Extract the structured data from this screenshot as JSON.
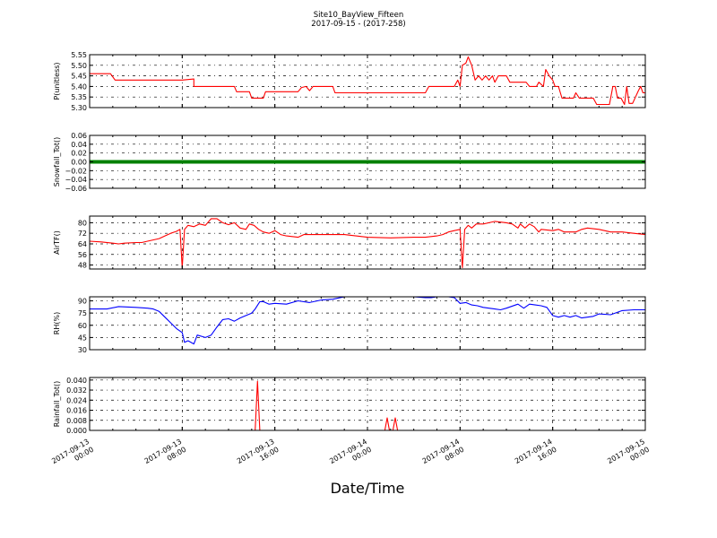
{
  "header": {
    "title": "Site10_BayView_Fifteen",
    "subtitle": "2017-09-15 - (2017-258)"
  },
  "xlabel": "Date/Time",
  "x_ticks": [
    {
      "line1": "2017-09-13",
      "line2": "00:00"
    },
    {
      "line1": "2017-09-13",
      "line2": "08:00"
    },
    {
      "line1": "2017-09-13",
      "line2": "16:00"
    },
    {
      "line1": "2017-09-14",
      "line2": "00:00"
    },
    {
      "line1": "2017-09-14",
      "line2": "08:00"
    },
    {
      "line1": "2017-09-14",
      "line2": "16:00"
    },
    {
      "line1": "2017-09-15",
      "line2": "00:00"
    }
  ],
  "chart_data": [
    {
      "type": "line",
      "ylabel": "P(unitless)",
      "color": "#ff0000",
      "xlim": [
        "2017-09-13 00:00",
        "2017-09-15 00:00"
      ],
      "ylim": [
        5.3,
        5.55
      ],
      "yticks": [
        "5.30",
        "5.35",
        "5.40",
        "5.45",
        "5.50",
        "5.55"
      ],
      "series": [
        {
          "points": [
            [
              0,
              5.46
            ],
            [
              1.8,
              5.46
            ],
            [
              2.2,
              5.43
            ],
            [
              8,
              5.43
            ],
            [
              9,
              5.435
            ],
            [
              9,
              5.4
            ],
            [
              12.5,
              5.4
            ],
            [
              12.7,
              5.375
            ],
            [
              13.8,
              5.375
            ],
            [
              14,
              5.345
            ],
            [
              15,
              5.345
            ],
            [
              15.2,
              5.375
            ],
            [
              18,
              5.375
            ],
            [
              18.3,
              5.395
            ],
            [
              18.7,
              5.4
            ],
            [
              19,
              5.38
            ],
            [
              19.3,
              5.4
            ],
            [
              21,
              5.4
            ],
            [
              21.2,
              5.37
            ],
            [
              29,
              5.37
            ],
            [
              29.3,
              5.4
            ],
            [
              31.5,
              5.4
            ],
            [
              31.8,
              5.43
            ],
            [
              32,
              5.4
            ],
            [
              32.2,
              5.5
            ],
            [
              32.5,
              5.51
            ],
            [
              32.7,
              5.54
            ],
            [
              33,
              5.5
            ],
            [
              33.3,
              5.43
            ],
            [
              33.6,
              5.45
            ],
            [
              33.9,
              5.43
            ],
            [
              34.2,
              5.45
            ],
            [
              34.5,
              5.43
            ],
            [
              34.8,
              5.45
            ],
            [
              35,
              5.42
            ],
            [
              35.3,
              5.45
            ],
            [
              36,
              5.45
            ],
            [
              36.3,
              5.42
            ],
            [
              37.7,
              5.42
            ],
            [
              38,
              5.4
            ],
            [
              38.6,
              5.4
            ],
            [
              38.8,
              5.42
            ],
            [
              39.2,
              5.4
            ],
            [
              39.4,
              5.48
            ],
            [
              39.7,
              5.45
            ],
            [
              40,
              5.43
            ],
            [
              40.2,
              5.4
            ],
            [
              40.5,
              5.4
            ],
            [
              40.8,
              5.345
            ],
            [
              41.8,
              5.345
            ],
            [
              42,
              5.37
            ],
            [
              42.3,
              5.345
            ],
            [
              43.5,
              5.345
            ],
            [
              43.8,
              5.315
            ],
            [
              44.9,
              5.315
            ],
            [
              45.2,
              5.4
            ],
            [
              45.4,
              5.4
            ],
            [
              45.6,
              5.345
            ],
            [
              45.9,
              5.345
            ],
            [
              46.2,
              5.315
            ],
            [
              46.4,
              5.4
            ],
            [
              46.6,
              5.32
            ],
            [
              46.9,
              5.32
            ],
            [
              47.4,
              5.38
            ],
            [
              47.6,
              5.4
            ],
            [
              47.8,
              5.37
            ],
            [
              48,
              5.37
            ]
          ]
        }
      ]
    },
    {
      "type": "scatter",
      "ylabel": "Snowfall_Tot()",
      "color": "#008000",
      "xlim": [
        "2017-09-13 00:00",
        "2017-09-15 00:00"
      ],
      "ylim": [
        -0.06,
        0.06
      ],
      "yticks": [
        "−0.06",
        "−0.04",
        "−0.02",
        "0.00",
        "0.02",
        "0.04",
        "0.06"
      ],
      "series": [
        {
          "points": [
            [
              0,
              0
            ],
            [
              48,
              0
            ]
          ]
        }
      ]
    },
    {
      "type": "line",
      "ylabel": "AirTF()",
      "color": "#ff0000",
      "xlim": [
        "2017-09-13 00:00",
        "2017-09-15 00:00"
      ],
      "ylim": [
        45,
        85
      ],
      "yticks": [
        "48",
        "56",
        "64",
        "72",
        "80"
      ],
      "series": [
        {
          "points": [
            [
              0,
              66
            ],
            [
              1,
              65.5
            ],
            [
              2,
              64.5
            ],
            [
              2.5,
              64
            ],
            [
              3,
              64.5
            ],
            [
              4,
              65
            ],
            [
              4.5,
              65
            ],
            [
              5,
              66
            ],
            [
              6,
              68
            ],
            [
              6.5,
              70
            ],
            [
              7,
              72
            ],
            [
              7.5,
              73.5
            ],
            [
              7.8,
              75
            ],
            [
              8,
              46
            ],
            [
              8.2,
              75
            ],
            [
              8.5,
              78
            ],
            [
              9,
              77
            ],
            [
              9.5,
              79
            ],
            [
              10,
              78
            ],
            [
              10.5,
              83
            ],
            [
              11,
              83
            ],
            [
              11.5,
              80
            ],
            [
              12,
              78.5
            ],
            [
              12.5,
              80
            ],
            [
              13,
              76
            ],
            [
              13.5,
              75
            ],
            [
              13.8,
              79
            ],
            [
              14.2,
              78
            ],
            [
              14.6,
              75
            ],
            [
              15,
              73
            ],
            [
              15.5,
              72
            ],
            [
              16,
              74
            ],
            [
              16.5,
              71
            ],
            [
              17,
              70
            ],
            [
              18,
              69
            ],
            [
              18.5,
              71
            ],
            [
              20,
              71
            ],
            [
              22,
              71
            ],
            [
              24,
              69
            ],
            [
              26,
              68.5
            ],
            [
              28,
              69
            ],
            [
              29,
              69
            ],
            [
              30,
              70
            ],
            [
              30.5,
              71
            ],
            [
              31,
              73
            ],
            [
              31.5,
              74
            ],
            [
              32,
              75
            ],
            [
              32.2,
              46
            ],
            [
              32.4,
              75
            ],
            [
              32.7,
              78
            ],
            [
              33,
              76
            ],
            [
              33.4,
              79
            ],
            [
              34,
              79
            ],
            [
              34.5,
              80
            ],
            [
              35,
              81
            ],
            [
              36,
              80
            ],
            [
              36.5,
              79
            ],
            [
              37,
              76
            ],
            [
              37.2,
              79
            ],
            [
              37.6,
              76
            ],
            [
              38,
              79
            ],
            [
              38.4,
              77
            ],
            [
              38.8,
              73
            ],
            [
              39,
              75
            ],
            [
              40,
              74
            ],
            [
              40.5,
              75
            ],
            [
              41,
              73
            ],
            [
              42,
              73
            ],
            [
              42.5,
              75
            ],
            [
              43,
              76
            ],
            [
              44,
              75
            ],
            [
              45,
              73
            ],
            [
              46,
              73
            ],
            [
              47,
              72
            ],
            [
              48,
              71
            ]
          ]
        }
      ]
    },
    {
      "type": "line",
      "ylabel": "RH(%)",
      "color": "#0000ff",
      "xlim": [
        "2017-09-13 00:00",
        "2017-09-15 00:00"
      ],
      "ylim": [
        30,
        95
      ],
      "yticks": [
        "30",
        "45",
        "60",
        "75",
        "90"
      ],
      "series": [
        {
          "points": [
            [
              0,
              80
            ],
            [
              1.5,
              80
            ],
            [
              2.5,
              83
            ],
            [
              4,
              82
            ],
            [
              5,
              81
            ],
            [
              5.5,
              80
            ],
            [
              6,
              77
            ],
            [
              6.5,
              70
            ],
            [
              7,
              63
            ],
            [
              7.5,
              56
            ],
            [
              8,
              51
            ],
            [
              8.2,
              39
            ],
            [
              8.5,
              41
            ],
            [
              9,
              37
            ],
            [
              9.3,
              48
            ],
            [
              10,
              45
            ],
            [
              10.5,
              48
            ],
            [
              11,
              58
            ],
            [
              11.5,
              67
            ],
            [
              12,
              68
            ],
            [
              12.5,
              65
            ],
            [
              13,
              69
            ],
            [
              13.5,
              72
            ],
            [
              14,
              75
            ],
            [
              14.3,
              80
            ],
            [
              14.7,
              89
            ],
            [
              15,
              89
            ],
            [
              15.5,
              86
            ],
            [
              16,
              87
            ],
            [
              17,
              86
            ],
            [
              18,
              90
            ],
            [
              19,
              88
            ],
            [
              20,
              91
            ],
            [
              21,
              92
            ],
            [
              22,
              95
            ],
            [
              24,
              95
            ],
            [
              26,
              95
            ],
            [
              28,
              95
            ],
            [
              29,
              94
            ],
            [
              29.5,
              94
            ],
            [
              30,
              95
            ],
            [
              31,
              95
            ],
            [
              31.5,
              94
            ],
            [
              32,
              87
            ],
            [
              32.5,
              88
            ],
            [
              33,
              85
            ],
            [
              33.5,
              84
            ],
            [
              34,
              82
            ],
            [
              34.5,
              81
            ],
            [
              35,
              80
            ],
            [
              35.5,
              79
            ],
            [
              36,
              81
            ],
            [
              37,
              86
            ],
            [
              37.5,
              81
            ],
            [
              38,
              86
            ],
            [
              38.5,
              85
            ],
            [
              39,
              84
            ],
            [
              39.5,
              82
            ],
            [
              40,
              72
            ],
            [
              40.5,
              70
            ],
            [
              41,
              72
            ],
            [
              41.5,
              70
            ],
            [
              42,
              72
            ],
            [
              42.5,
              69
            ],
            [
              43,
              70
            ],
            [
              43.5,
              71
            ],
            [
              44,
              74
            ],
            [
              45,
              73
            ],
            [
              46,
              78
            ],
            [
              47,
              79
            ],
            [
              48,
              79
            ]
          ]
        }
      ]
    },
    {
      "type": "line",
      "ylabel": "Rainfall_Tot()",
      "color": "#ff0000",
      "xlim": [
        "2017-09-13 00:00",
        "2017-09-15 00:00"
      ],
      "ylim": [
        0,
        0.042
      ],
      "yticks": [
        "0.000",
        "0.008",
        "0.016",
        "0.024",
        "0.032",
        "0.040"
      ],
      "series": [
        {
          "points": [
            [
              0,
              0
            ],
            [
              14.3,
              0
            ],
            [
              14.5,
              0.039
            ],
            [
              14.7,
              0
            ],
            [
              25.5,
              0
            ],
            [
              25.7,
              0.01
            ],
            [
              25.9,
              0
            ],
            [
              26.2,
              0
            ],
            [
              26.4,
              0.01
            ],
            [
              26.6,
              0
            ],
            [
              48,
              0
            ]
          ]
        }
      ]
    }
  ]
}
